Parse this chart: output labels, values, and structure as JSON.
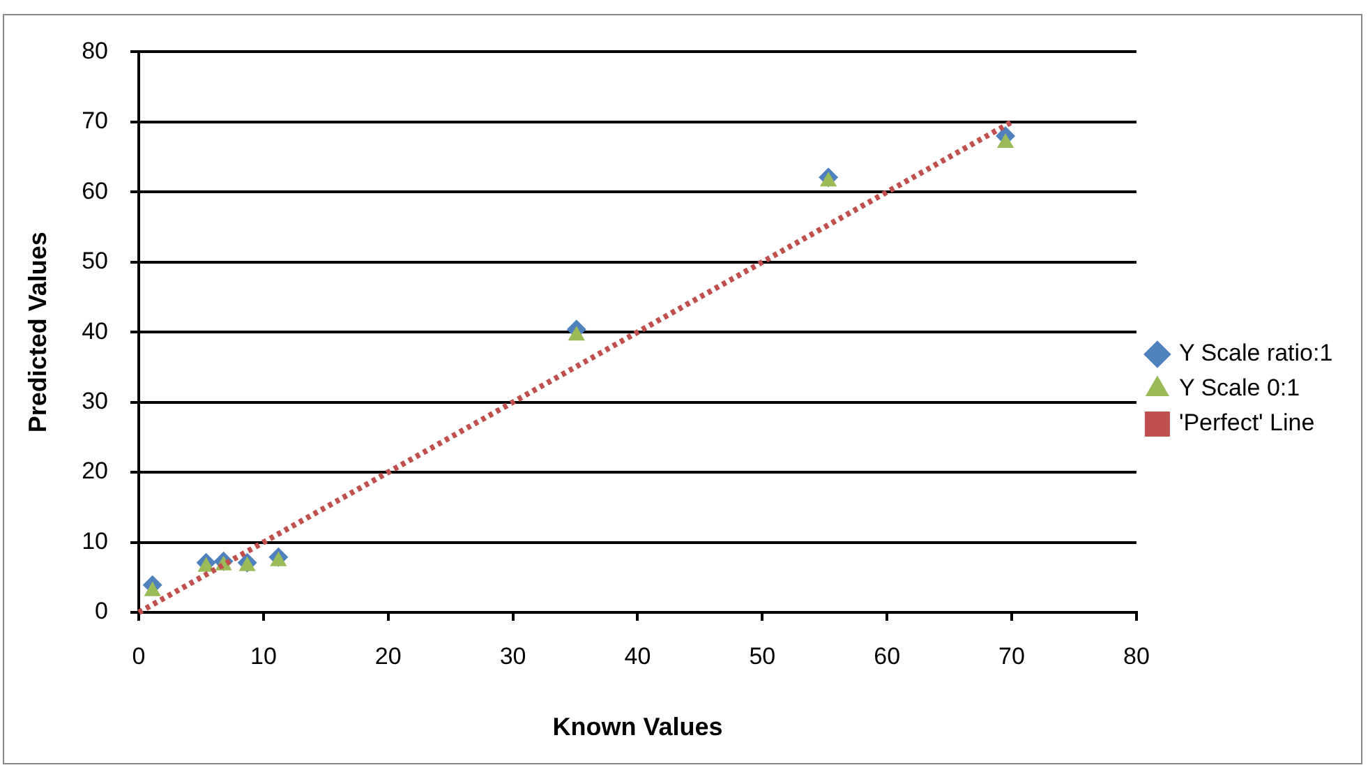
{
  "chart_data": {
    "type": "scatter",
    "xlabel": "Known Values",
    "ylabel": "Predicted Values",
    "xlim": [
      0,
      80
    ],
    "xticks": [
      0,
      10,
      20,
      30,
      40,
      50,
      60,
      70,
      80
    ],
    "ylim": [
      0,
      80
    ],
    "yticks": [
      0,
      10,
      20,
      30,
      40,
      50,
      60,
      70,
      80
    ],
    "grid": "y",
    "legend": "right",
    "series": [
      {
        "name": "Y Scale ratio:1",
        "color": "#4f81bd",
        "marker": "diamond",
        "x": [
          1.1,
          5.4,
          6.8,
          8.7,
          11.2,
          35.1,
          55.3,
          69.5
        ],
        "values": [
          3.9,
          7.1,
          7.3,
          7.1,
          7.9,
          40.4,
          62.1,
          68
        ]
      },
      {
        "name": "Y Scale 0:1",
        "color": "#9bbb59",
        "marker": "triangle",
        "x": [
          1.1,
          5.4,
          6.8,
          8.7,
          11.2,
          35.1,
          55.3,
          69.5
        ],
        "values": [
          3,
          6.5,
          6.7,
          6.6,
          7.3,
          39.5,
          61.5,
          67
        ]
      },
      {
        "name": "'Perfect' Line",
        "color": "#c0504d",
        "type": "line",
        "marker": "none",
        "line_style": "dotted",
        "x": [
          0,
          70
        ],
        "values": [
          0,
          70
        ]
      }
    ]
  }
}
